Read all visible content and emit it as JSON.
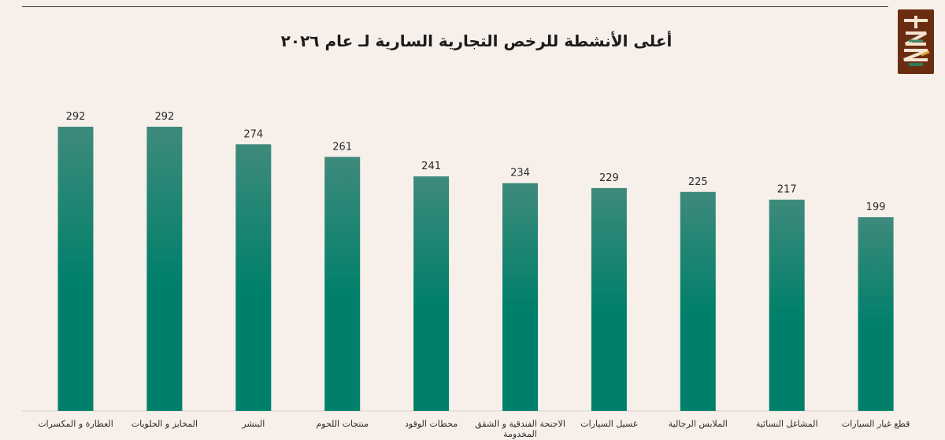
{
  "chart_data": {
    "type": "bar",
    "title": "أعلى الأنشطة للرخص التجارية السارية لـ عام ٢٠٢٦",
    "categories": [
      "العطارة و المكسرات",
      "المخابز و الحلويات",
      "البنشر",
      "منتجات اللحوم",
      "محطات الوقود",
      "الاجنحة الفندقية و الشقق المخدومة",
      "غسيل السيارات",
      "الملابس الرجالية",
      "المشاغل النسائية",
      "قطع غيار السيارات"
    ],
    "values": [
      292,
      292,
      274,
      261,
      241,
      234,
      229,
      225,
      217,
      199
    ],
    "value_labels": [
      "292",
      "292",
      "274",
      "261",
      "241",
      "234",
      "229",
      "225",
      "217",
      "199"
    ],
    "ylim": [
      0,
      292
    ],
    "grid": false,
    "legend": "none",
    "colors": {
      "bar_top": "#3e8a7c",
      "bar_bottom": "#00806a",
      "background": "#f7efea",
      "logo": "#6b2d12"
    }
  },
  "logo": {
    "icon": "brand-logo-icon"
  }
}
